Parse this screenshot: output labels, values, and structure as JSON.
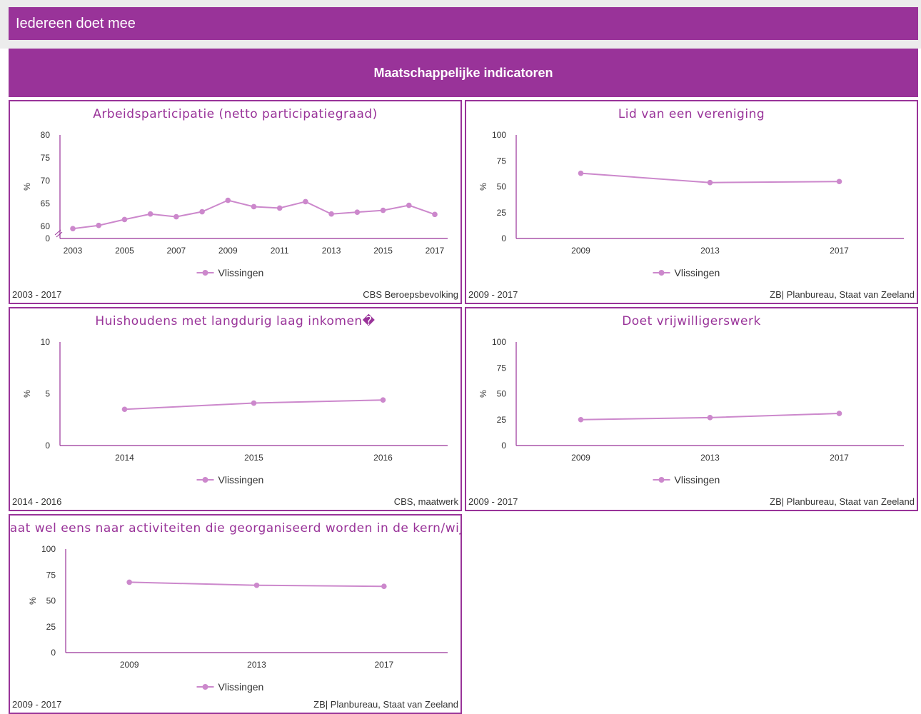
{
  "header": {
    "title": "Iedereen doet mee"
  },
  "section": {
    "title": "Maatschappelijke indicatoren"
  },
  "colors": {
    "brand": "#993399",
    "series": "#cc88cc"
  },
  "chart_data": [
    {
      "type": "line",
      "title": "Arbeidsparticipatie (netto participatiegraad)",
      "ylabel": "%",
      "x": [
        2003,
        2004,
        2005,
        2006,
        2007,
        2008,
        2009,
        2010,
        2011,
        2012,
        2013,
        2014,
        2015,
        2016,
        2017
      ],
      "xticks": [
        "2003",
        "2005",
        "2007",
        "2009",
        "2011",
        "2013",
        "2015",
        "2017"
      ],
      "yticks": [
        "0",
        "60",
        "65",
        "70",
        "75",
        "80"
      ],
      "ylim": [
        58,
        80
      ],
      "axis_break": true,
      "series": [
        {
          "name": "Vlissingen",
          "values": [
            59.5,
            60.2,
            61.5,
            62.7,
            62.1,
            63.2,
            65.7,
            64.3,
            64.0,
            65.4,
            62.7,
            63.1,
            63.5,
            64.6,
            62.6
          ]
        }
      ],
      "period": "2003 - 2017",
      "source": "CBS Beroepsbevolking"
    },
    {
      "type": "line",
      "title": "Lid van een vereniging",
      "ylabel": "%",
      "x": [
        2009,
        2013,
        2017
      ],
      "xticks": [
        "2009",
        "2013",
        "2017"
      ],
      "yticks": [
        "0",
        "25",
        "50",
        "75",
        "100"
      ],
      "ylim": [
        0,
        100
      ],
      "series": [
        {
          "name": "Vlissingen",
          "values": [
            63,
            54,
            55
          ]
        }
      ],
      "period": "2009 - 2017",
      "source": "ZB| Planbureau, Staat van Zeeland"
    },
    {
      "type": "line",
      "title": "Huishoudens met langdurig laag inkomen�",
      "ylabel": "%",
      "x": [
        2014,
        2015,
        2016
      ],
      "xticks": [
        "2014",
        "2015",
        "2016"
      ],
      "yticks": [
        "0",
        "5",
        "10"
      ],
      "ylim": [
        0,
        10
      ],
      "series": [
        {
          "name": "Vlissingen",
          "values": [
            3.5,
            4.1,
            4.4
          ]
        }
      ],
      "period": "2014 - 2016",
      "source": "CBS, maatwerk"
    },
    {
      "type": "line",
      "title": "Doet vrijwilligerswerk",
      "ylabel": "%",
      "x": [
        2009,
        2013,
        2017
      ],
      "xticks": [
        "2009",
        "2013",
        "2017"
      ],
      "yticks": [
        "0",
        "25",
        "50",
        "75",
        "100"
      ],
      "ylim": [
        0,
        100
      ],
      "series": [
        {
          "name": "Vlissingen",
          "values": [
            25,
            27,
            31
          ]
        }
      ],
      "period": "2009 - 2017",
      "source": "ZB| Planbureau, Staat van Zeeland"
    },
    {
      "type": "line",
      "title": "Gaat wel eens naar activiteiten die georganiseerd worden in de kern/wijk",
      "ylabel": "%",
      "x": [
        2009,
        2013,
        2017
      ],
      "xticks": [
        "2009",
        "2013",
        "2017"
      ],
      "yticks": [
        "0",
        "25",
        "50",
        "75",
        "100"
      ],
      "ylim": [
        0,
        100
      ],
      "series": [
        {
          "name": "Vlissingen",
          "values": [
            68,
            65,
            64
          ]
        }
      ],
      "period": "2009 - 2017",
      "source": "ZB| Planbureau, Staat van Zeeland"
    }
  ]
}
